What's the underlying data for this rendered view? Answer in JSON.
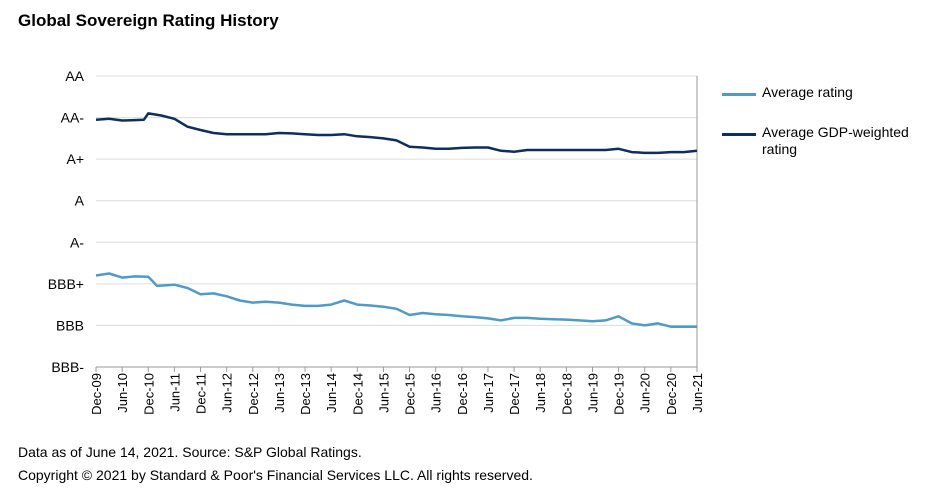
{
  "title": "Global Sovereign Rating History",
  "chart_data": {
    "type": "line",
    "title": "Global Sovereign Rating History",
    "xlabel": "",
    "ylabel": "",
    "y_levels": [
      "BBB-",
      "BBB",
      "BBB+",
      "A-",
      "A",
      "A+",
      "AA-",
      "AA"
    ],
    "ylim": [
      0,
      7
    ],
    "x_ticks": [
      "Dec-09",
      "Jun-10",
      "Dec-10",
      "Jun-11",
      "Dec-11",
      "Jun-12",
      "Dec-12",
      "Jun-13",
      "Dec-13",
      "Jun-14",
      "Dec-14",
      "Jun-15",
      "Dec-15",
      "Jun-16",
      "Dec-16",
      "Jun-17",
      "Dec-17",
      "Jun-18",
      "Dec-18",
      "Jun-19",
      "Dec-19",
      "Jun-20",
      "Dec-20",
      "Jun-21"
    ],
    "grid": true,
    "legend_position": "right",
    "series": [
      {
        "name": "Average rating",
        "color": "#4e9bc8",
        "x": [
          "Dec-09",
          "Mar-10",
          "Jun-10",
          "Sep-10",
          "Dec-10",
          "Feb-11",
          "Jun-11",
          "Sep-11",
          "Dec-11",
          "Mar-12",
          "Jun-12",
          "Sep-12",
          "Dec-12",
          "Mar-13",
          "Jun-13",
          "Sep-13",
          "Dec-13",
          "Mar-14",
          "Jun-14",
          "Sep-14",
          "Dec-14",
          "Mar-15",
          "Jun-15",
          "Sep-15",
          "Dec-15",
          "Mar-16",
          "Jun-16",
          "Sep-16",
          "Dec-16",
          "Mar-17",
          "Jun-17",
          "Sep-17",
          "Dec-17",
          "Mar-18",
          "Jun-18",
          "Sep-18",
          "Dec-18",
          "Mar-19",
          "Jun-19",
          "Sep-19",
          "Dec-19",
          "Mar-20",
          "Jun-20",
          "Sep-20",
          "Dec-20",
          "Mar-21",
          "Jun-21"
        ],
        "values": [
          2.2,
          2.25,
          2.15,
          2.18,
          2.17,
          1.95,
          1.98,
          1.9,
          1.75,
          1.77,
          1.7,
          1.6,
          1.55,
          1.57,
          1.55,
          1.5,
          1.47,
          1.47,
          1.5,
          1.6,
          1.5,
          1.48,
          1.45,
          1.4,
          1.25,
          1.3,
          1.27,
          1.25,
          1.22,
          1.2,
          1.17,
          1.12,
          1.18,
          1.18,
          1.16,
          1.15,
          1.14,
          1.12,
          1.1,
          1.12,
          1.22,
          1.05,
          1.0,
          1.05,
          0.97,
          0.97,
          0.97
        ]
      },
      {
        "name": "Average GDP-weighted rating",
        "color": "#0f2d5f",
        "x": [
          "Dec-09",
          "Mar-10",
          "Jun-10",
          "Sep-10",
          "Nov-10",
          "Dec-10",
          "Mar-11",
          "Jun-11",
          "Sep-11",
          "Dec-11",
          "Mar-12",
          "Jun-12",
          "Sep-12",
          "Dec-12",
          "Mar-13",
          "Jun-13",
          "Sep-13",
          "Dec-13",
          "Mar-14",
          "Jun-14",
          "Sep-14",
          "Dec-14",
          "Mar-15",
          "Jun-15",
          "Sep-15",
          "Dec-15",
          "Mar-16",
          "Jun-16",
          "Sep-16",
          "Dec-16",
          "Mar-17",
          "Jun-17",
          "Sep-17",
          "Dec-17",
          "Mar-18",
          "Jun-18",
          "Sep-18",
          "Dec-18",
          "Mar-19",
          "Jun-19",
          "Sep-19",
          "Dec-19",
          "Mar-20",
          "Jun-20",
          "Sep-20",
          "Dec-20",
          "Mar-21",
          "Jun-21"
        ],
        "values": [
          5.95,
          5.97,
          5.93,
          5.94,
          5.95,
          6.1,
          6.05,
          5.97,
          5.78,
          5.7,
          5.63,
          5.6,
          5.6,
          5.6,
          5.6,
          5.63,
          5.62,
          5.6,
          5.58,
          5.58,
          5.6,
          5.55,
          5.53,
          5.5,
          5.45,
          5.3,
          5.28,
          5.25,
          5.25,
          5.27,
          5.28,
          5.28,
          5.2,
          5.18,
          5.22,
          5.22,
          5.22,
          5.22,
          5.22,
          5.22,
          5.22,
          5.25,
          5.17,
          5.15,
          5.15,
          5.17,
          5.17,
          5.2
        ]
      }
    ]
  },
  "footer": {
    "source": "Data as of June 14, 2021. Source: S&P Global Ratings.",
    "copyright": "Copyright © 2021 by Standard & Poor's Financial Services LLC. All rights reserved."
  }
}
